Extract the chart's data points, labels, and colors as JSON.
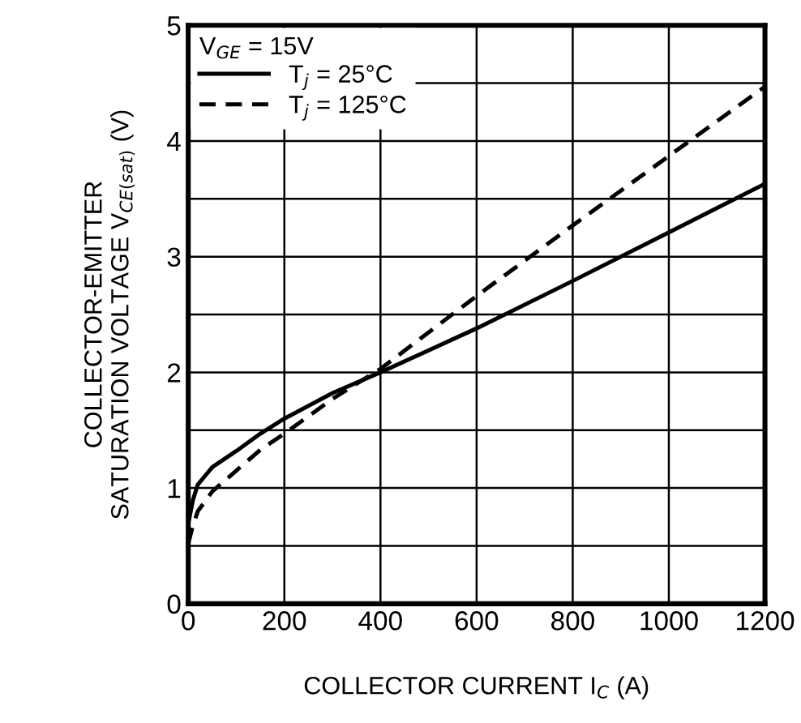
{
  "chart_data": {
    "type": "line",
    "xlabel": "COLLECTOR CURRENT I$_{C}$ (A)",
    "ylabel": "COLLECTOR-EMITTER\nSATURATION VOLTAGE V$_{CE(sat)}$ (V)",
    "legend_title": "V$_{GE}$ = 15V",
    "legend": "top left",
    "grid": true,
    "marker": "none",
    "xlim": [
      0,
      1200
    ],
    "xticks": [
      0,
      200,
      400,
      600,
      800,
      1000,
      1200
    ],
    "ylim": [
      0,
      5
    ],
    "yticks": [
      0,
      {
        "value": 0.5,
        "label": null
      },
      1,
      {
        "value": 1.5,
        "label": null
      },
      2,
      {
        "value": 2.5,
        "label": null
      },
      3,
      {
        "value": 3.5,
        "label": null
      },
      4,
      {
        "value": 4.5,
        "label": null
      },
      5
    ],
    "series": [
      {
        "name": "T$_{j}$ = 25°C",
        "color": "#000000",
        "line_style": "solid",
        "x": [
          0,
          10,
          20,
          50,
          100,
          150,
          200,
          300,
          400,
          600,
          800,
          1000,
          1200
        ],
        "values": [
          0.69,
          0.9,
          1.03,
          1.18,
          1.32,
          1.47,
          1.6,
          1.82,
          2.0,
          2.38,
          2.79,
          3.21,
          3.63
        ]
      },
      {
        "name": "T$_{j}$ = 125°C",
        "color": "#000000",
        "line_style": "dashed",
        "x": [
          0,
          10,
          20,
          50,
          100,
          150,
          200,
          300,
          400,
          600,
          800,
          1000,
          1200
        ],
        "values": [
          0.52,
          0.68,
          0.8,
          0.97,
          1.15,
          1.33,
          1.47,
          1.77,
          2.03,
          2.66,
          3.27,
          3.87,
          4.47
        ]
      }
    ]
  }
}
